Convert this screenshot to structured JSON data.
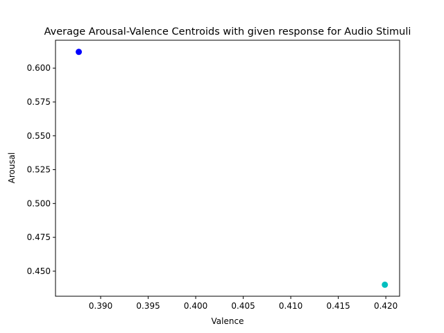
{
  "chart_data": {
    "type": "scatter",
    "title": "Average Arousal-Valence Centroids with given response for Audio Stimuli",
    "xlabel": "Valence",
    "ylabel": "Arousal",
    "xlim": [
      0.38525,
      0.42145
    ],
    "ylim": [
      0.4315,
      0.6206
    ],
    "xticks": [
      0.39,
      0.395,
      0.4,
      0.405,
      0.41,
      0.415,
      0.42
    ],
    "xtick_labels": [
      "0.390",
      "0.395",
      "0.400",
      "0.405",
      "0.410",
      "0.415",
      "0.420"
    ],
    "yticks": [
      0.45,
      0.475,
      0.5,
      0.525,
      0.55,
      0.575,
      0.6
    ],
    "ytick_labels": [
      "0.450",
      "0.475",
      "0.500",
      "0.525",
      "0.550",
      "0.575",
      "0.600"
    ],
    "grid": false,
    "legend": false,
    "points": [
      {
        "x": 0.3877,
        "y": 0.612,
        "color": "#0000ff"
      },
      {
        "x": 0.4199,
        "y": 0.44,
        "color": "#00bfbf"
      }
    ]
  }
}
